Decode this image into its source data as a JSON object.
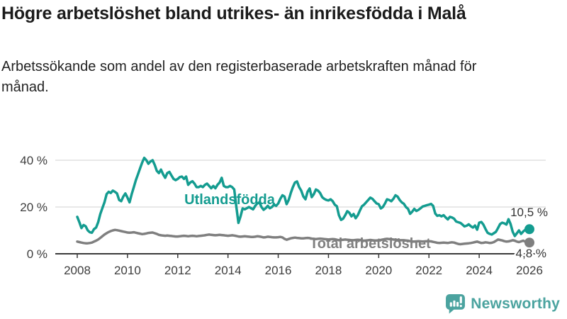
{
  "title": "Högre arbetslöshet bland utrikes- än inrikesfödda i Malå",
  "subtitle": "Arbetssökande som andel av den registerbaserade arbetskraften månad för månad.",
  "branding": {
    "logo_text": "Newsworthy",
    "logo_icon": "newsworthy-speech-bubble-chart-icon",
    "brand_color": "#4ba39f"
  },
  "colors": {
    "foreign_born_line": "#149c90",
    "total_line": "#7f7f7f",
    "axis": "#3a3a3a",
    "grid": "#d9d9d9",
    "tick_text": "#3c3c3c",
    "title_text": "#1b1b1b",
    "end_label_text": "#333333",
    "background": "#ffffff"
  },
  "chart_data": {
    "type": "line",
    "title": "Högre arbetslöshet bland utrikes- än inrikesfödda i Malå",
    "subtitle": "Arbetssökande som andel av den registerbaserade arbetskraften månad för månad.",
    "x_unit": "month",
    "x_range": [
      "2008-01",
      "2026-01"
    ],
    "points_per_year": 12,
    "x_tick_labels": [
      "2008",
      "2010",
      "2012",
      "2014",
      "2016",
      "2018",
      "2020",
      "2022",
      "2024",
      "2026"
    ],
    "y_tick_labels": [
      "0 %",
      "20 %",
      "40 %"
    ],
    "y_tick_values": [
      0,
      20,
      40
    ],
    "ylim": [
      0,
      45
    ],
    "grid": "horizontal",
    "legend_position": "inline-labels",
    "series": [
      {
        "name": "Utlandsfödda",
        "color": "#149c90",
        "end_label": "10,5 %",
        "last_value": 10.5,
        "values": [
          15.8,
          13.5,
          11.0,
          12.3,
          11.8,
          10.0,
          9.2,
          9.0,
          10.5,
          11.2,
          13.5,
          17.0,
          19.5,
          22.0,
          25.5,
          26.5,
          26.0,
          27.0,
          26.5,
          25.8,
          23.0,
          22.5,
          24.5,
          25.8,
          24.0,
          22.0,
          25.5,
          28.5,
          31.5,
          34.0,
          36.5,
          39.0,
          41.0,
          40.0,
          38.5,
          39.5,
          40.0,
          38.0,
          35.5,
          34.5,
          36.0,
          34.0,
          32.5,
          34.5,
          35.0,
          33.5,
          32.0,
          31.5,
          32.0,
          32.8,
          33.0,
          32.0,
          33.0,
          29.5,
          30.5,
          31.0,
          30.0,
          28.5,
          28.5,
          29.0,
          28.5,
          29.5,
          30.0,
          29.0,
          28.0,
          29.0,
          28.0,
          29.5,
          30.5,
          32.5,
          29.0,
          28.5,
          28.5,
          29.0,
          28.5,
          27.5,
          20.0,
          13.2,
          16.0,
          19.4,
          19.0,
          19.5,
          20.0,
          19.5,
          19.0,
          20.5,
          21.5,
          22.0,
          20.0,
          18.8,
          19.5,
          20.5,
          19.5,
          20.0,
          21.0,
          20.5,
          21.5,
          23.5,
          25.0,
          24.5,
          21.2,
          23.0,
          26.0,
          28.5,
          30.5,
          30.9,
          28.5,
          27.0,
          24.5,
          23.3,
          26.5,
          27.9,
          24.2,
          25.5,
          27.5,
          27.0,
          26.0,
          24.2,
          23.5,
          23.0,
          22.8,
          23.3,
          22.5,
          21.0,
          20.3,
          16.5,
          14.5,
          15.0,
          16.5,
          18.2,
          17.5,
          16.0,
          17.0,
          15.2,
          16.5,
          18.5,
          20.3,
          21.0,
          22.0,
          23.0,
          24.0,
          23.5,
          22.5,
          21.5,
          21.2,
          19.4,
          20.0,
          21.5,
          23.3,
          23.0,
          22.5,
          23.5,
          25.0,
          24.5,
          23.0,
          22.0,
          21.4,
          20.0,
          19.2,
          17.1,
          18.0,
          19.2,
          18.3,
          18.8,
          19.5,
          20.2,
          20.5,
          20.8,
          21.0,
          21.3,
          20.5,
          17.2,
          16.2,
          16.5,
          16.0,
          16.5,
          15.5,
          14.7,
          15.8,
          15.5,
          15.0,
          13.8,
          13.5,
          13.2,
          12.5,
          11.7,
          12.0,
          12.6,
          11.8,
          11.2,
          12.1,
          10.3,
          13.3,
          13.6,
          12.5,
          10.6,
          9.0,
          8.5,
          8.2,
          8.8,
          9.4,
          11.0,
          12.7,
          13.3,
          13.0,
          12.5,
          14.8,
          12.7,
          9.4,
          7.6,
          8.8,
          10.0,
          8.5,
          9.5,
          10.3,
          10.0,
          10.5
        ]
      },
      {
        "name": "Total arbetslöshet",
        "color": "#7f7f7f",
        "end_label": "4,8 %",
        "last_value": 4.8,
        "values": [
          5.2,
          5.0,
          4.8,
          4.6,
          4.5,
          4.5,
          4.6,
          4.8,
          5.2,
          5.6,
          6.1,
          6.8,
          7.5,
          8.2,
          8.8,
          9.3,
          9.7,
          10.0,
          10.2,
          10.1,
          9.9,
          9.7,
          9.5,
          9.3,
          9.1,
          9.0,
          9.1,
          9.2,
          9.0,
          8.8,
          8.6,
          8.4,
          8.5,
          8.7,
          8.9,
          9.0,
          9.1,
          8.8,
          8.5,
          8.1,
          7.9,
          7.8,
          7.7,
          7.8,
          7.7,
          7.6,
          7.5,
          7.4,
          7.4,
          7.5,
          7.6,
          7.7,
          7.6,
          7.5,
          7.6,
          7.7,
          7.6,
          7.5,
          7.6,
          7.7,
          7.8,
          7.9,
          8.1,
          8.2,
          8.1,
          8.0,
          7.9,
          8.0,
          8.1,
          8.0,
          7.9,
          7.8,
          7.7,
          7.8,
          7.9,
          7.8,
          7.6,
          7.4,
          7.3,
          7.4,
          7.5,
          7.4,
          7.3,
          7.2,
          7.2,
          7.3,
          7.5,
          7.4,
          7.2,
          7.0,
          7.1,
          7.3,
          7.2,
          7.1,
          7.0,
          7.0,
          7.1,
          7.2,
          7.0,
          6.4,
          6.0,
          6.3,
          6.6,
          6.8,
          6.9,
          6.8,
          6.7,
          6.6,
          6.6,
          6.7,
          6.8,
          6.7,
          6.5,
          6.4,
          6.3,
          6.4,
          6.5,
          6.4,
          6.3,
          6.2,
          6.1,
          6.2,
          6.3,
          6.2,
          6.0,
          5.8,
          5.9,
          6.0,
          6.1,
          6.0,
          5.9,
          5.8,
          5.8,
          5.9,
          6.0,
          5.9,
          5.7,
          5.6,
          5.7,
          5.8,
          5.9,
          5.8,
          5.7,
          5.7,
          5.8,
          5.9,
          6.1,
          6.3,
          6.4,
          6.3,
          6.2,
          6.1,
          6.0,
          5.9,
          5.8,
          5.8,
          5.8,
          5.7,
          5.6,
          5.4,
          5.2,
          5.2,
          5.3,
          5.4,
          5.3,
          5.2,
          5.3,
          5.4,
          5.4,
          5.3,
          5.1,
          4.9,
          4.7,
          4.6,
          4.7,
          4.8,
          4.7,
          4.6,
          4.8,
          4.9,
          4.8,
          4.5,
          4.2,
          4.1,
          4.2,
          4.3,
          4.4,
          4.5,
          4.6,
          4.8,
          5.0,
          5.2,
          4.9,
          4.6,
          4.7,
          4.9,
          4.8,
          4.6,
          4.7,
          5.0,
          5.5,
          6.1,
          5.9,
          5.7,
          5.4,
          5.2,
          5.3,
          5.5,
          5.8,
          5.6,
          5.2,
          5.0,
          5.3,
          5.6,
          5.2,
          4.9,
          4.8
        ]
      }
    ]
  }
}
